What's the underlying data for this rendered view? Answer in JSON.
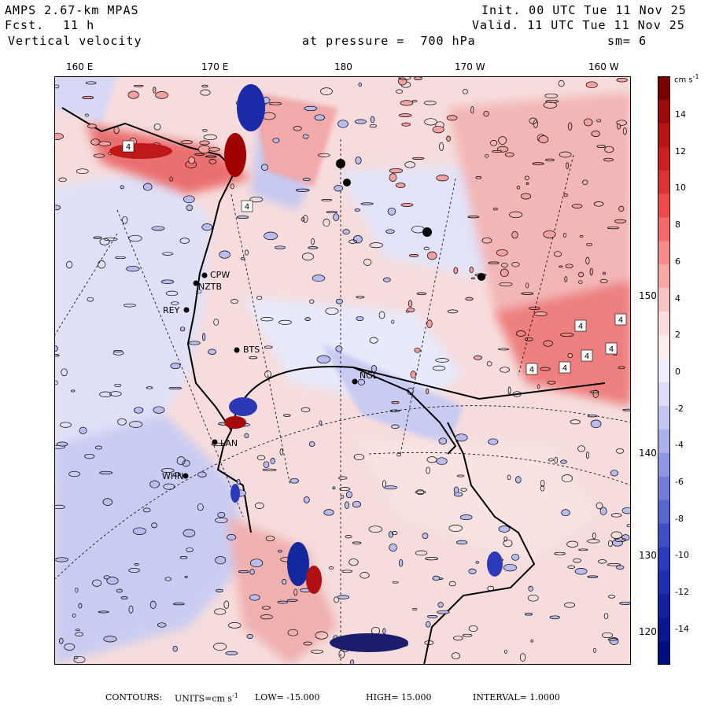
{
  "header": {
    "model": "AMPS 2.67-km MPAS",
    "fcst_label": "Fcst.",
    "fcst_value": "11 h",
    "variable": "Vertical velocity",
    "init": "Init. 00 UTC Tue 11 Nov 25",
    "valid": "Valid. 11 UTC Tue 11 Nov 25",
    "pressure": "at pressure =  700 hPa",
    "smoothing": "sm= 6"
  },
  "longitude_labels": [
    "160 E",
    "170 E",
    "180",
    "170 W",
    "160 W"
  ],
  "latitude_labels": [
    "150 W",
    "140 W",
    "130 W",
    "120 W"
  ],
  "colorbar": {
    "units": "cm s",
    "units_exp": "-1",
    "ticks": [
      "14",
      "12",
      "10",
      "8",
      "6",
      "4",
      "2",
      "0",
      "-2",
      "-4",
      "-6",
      "-8",
      "-10",
      "-12",
      "-14"
    ],
    "colors": [
      "#7a0000",
      "#9a0a0a",
      "#b81414",
      "#cc2020",
      "#de3333",
      "#ee4c4c",
      "#f56a6a",
      "#f88a8a",
      "#f9a8a8",
      "#fbc4c4",
      "#fcdede",
      "#fdeeee",
      "#eeeefc",
      "#dcdcf9",
      "#c6c6f3",
      "#abb0ec",
      "#8f96e4",
      "#747ed8",
      "#5966cf",
      "#3f4ec6",
      "#2a3abd",
      "#1f2db0",
      "#1420a0",
      "#0a168f",
      "#000c80"
    ]
  },
  "stations": [
    "CPW",
    "NZTB",
    "REY",
    "BTS",
    "NGL",
    "LAN",
    "WHN"
  ],
  "box_labels": [
    "4",
    "4",
    "4",
    "4",
    "4",
    "4",
    "4",
    "4"
  ],
  "footer": {
    "contours": "CONTOURS:",
    "units": "UNITS=cm s",
    "units_exp": "-1",
    "low": "LOW= -15.000",
    "high": "HIGH= 15.000",
    "interval": "INTERVAL= 1.0000"
  }
}
